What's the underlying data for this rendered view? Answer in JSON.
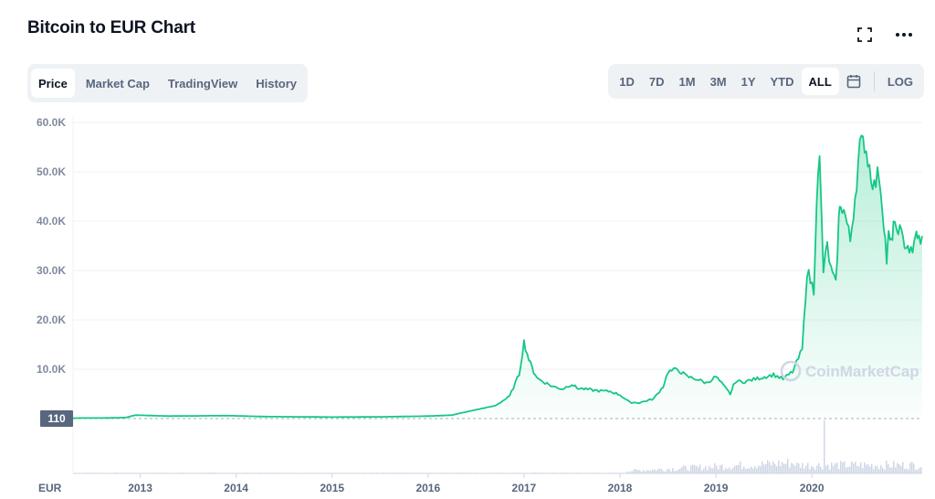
{
  "header": {
    "title": "Bitcoin to EUR Chart"
  },
  "tabs": [
    {
      "label": "Price",
      "active": true
    },
    {
      "label": "Market Cap",
      "active": false
    },
    {
      "label": "TradingView",
      "active": false
    },
    {
      "label": "History",
      "active": false
    }
  ],
  "ranges": [
    {
      "label": "1D",
      "active": false
    },
    {
      "label": "7D",
      "active": false
    },
    {
      "label": "1M",
      "active": false
    },
    {
      "label": "3M",
      "active": false
    },
    {
      "label": "1Y",
      "active": false
    },
    {
      "label": "YTD",
      "active": false
    },
    {
      "label": "ALL",
      "active": true
    }
  ],
  "scale_toggle": "LOG",
  "icons": {
    "fullscreen": "fullscreen-icon",
    "more": "more-icon",
    "calendar": "calendar-icon"
  },
  "colors": {
    "line": "#16c784",
    "fill_top": "#16c784",
    "grid": "#eff2f5",
    "volume": "#cfd6e4",
    "text_muted": "#808a9d"
  },
  "chart_data": {
    "type": "area",
    "currency_label": "EUR",
    "current_marker": "110",
    "watermark": "CoinMarketCap",
    "y_ticks": [
      {
        "value": 10000,
        "label": "10.0K"
      },
      {
        "value": 20000,
        "label": "20.0K"
      },
      {
        "value": 30000,
        "label": "30.0K"
      },
      {
        "value": 40000,
        "label": "40.0K"
      },
      {
        "value": 50000,
        "label": "50.0K"
      },
      {
        "value": 60000,
        "label": "60.0K"
      }
    ],
    "x_ticks": [
      {
        "value": 2013.0,
        "label": "2013"
      },
      {
        "value": 2014.0,
        "label": "2014"
      },
      {
        "value": 2015.0,
        "label": "2015"
      },
      {
        "value": 2016.0,
        "label": "2016"
      },
      {
        "value": 2017.0,
        "label": "2017"
      },
      {
        "value": 2018.0,
        "label": "2018"
      },
      {
        "value": 2019.0,
        "label": "2019"
      },
      {
        "value": 2020.0,
        "label": "2020"
      }
    ],
    "xlim": [
      2012.3,
      2021.15
    ],
    "ylim": [
      0,
      60000
    ],
    "grid": true,
    "series": [
      {
        "x": [
          2012.3,
          2012.6,
          2012.85,
          2012.95,
          2013.3,
          2013.9,
          2014.3,
          2015.0,
          2015.5,
          2016.0,
          2016.25,
          2016.5,
          2016.7,
          2016.85,
          2016.95,
          2017.0,
          2017.05,
          2017.1,
          2017.15,
          2017.2,
          2017.3,
          2017.4,
          2017.5,
          2017.55,
          2017.7,
          2017.8,
          2017.9,
          2018.0,
          2018.1,
          2018.2,
          2018.35,
          2018.45,
          2018.5,
          2018.6,
          2018.7,
          2018.8,
          2018.9,
          2019.0,
          2019.15,
          2019.2,
          2019.3,
          2019.45,
          2019.6,
          2019.7,
          2019.8,
          2019.9,
          2019.95,
          2020.02,
          2020.05,
          2020.08,
          2020.12,
          2020.16,
          2020.2,
          2020.25,
          2020.28,
          2020.3,
          2020.35,
          2020.4,
          2020.45,
          2020.5,
          2020.55,
          2020.6,
          2020.65,
          2020.7,
          2020.75,
          2020.78,
          2020.8,
          2020.83,
          2020.85,
          2020.88,
          2020.9,
          2020.95,
          2021.0,
          2021.05,
          2021.08,
          2021.1,
          2021.15
        ],
        "y": [
          100,
          110,
          200,
          700,
          500,
          600,
          400,
          300,
          350,
          500,
          700,
          1800,
          2600,
          4500,
          9000,
          15500,
          12000,
          9500,
          8000,
          7500,
          6500,
          6000,
          7000,
          6200,
          5800,
          5600,
          5500,
          4800,
          3300,
          3200,
          4000,
          6500,
          9500,
          10000,
          8500,
          8000,
          7200,
          8500,
          5000,
          7500,
          7500,
          8200,
          8900,
          8000,
          9500,
          14000,
          30000,
          26000,
          45000,
          52000,
          30000,
          35000,
          30000,
          27000,
          40000,
          44000,
          41000,
          36000,
          45000,
          55000,
          56000,
          51000,
          47000,
          50000,
          40000,
          32000,
          37000,
          35000,
          40000,
          37000,
          39000,
          36000,
          35000,
          33000,
          38000,
          36000,
          37000
        ]
      }
    ]
  }
}
